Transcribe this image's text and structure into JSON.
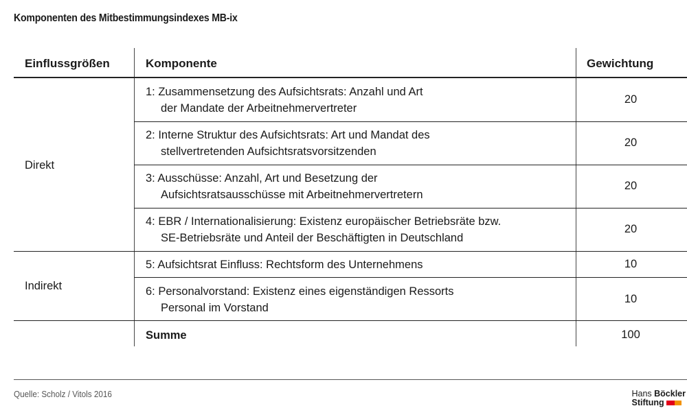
{
  "title": "Komponenten des Mitbestimmungsindexes MB-ix",
  "headers": {
    "group": "Einflussgrößen",
    "component": "Komponente",
    "weight": "Gewichtung"
  },
  "groups": [
    {
      "label": "Direkt"
    },
    {
      "label": "Indirekt"
    }
  ],
  "rows": [
    {
      "line1": "1: Zusammensetzung des Aufsichtsrats: Anzahl und Art",
      "line2": "der Mandate der Arbeitnehmervertreter",
      "weight": "20"
    },
    {
      "line1": "2: Interne Struktur des Aufsichtsrats: Art und Mandat des",
      "line2": "stellvertretenden Aufsichtsratsvorsitzenden",
      "weight": "20"
    },
    {
      "line1": "3: Ausschüsse: Anzahl, Art und Besetzung der",
      "line2": "Aufsichtsratsausschüsse mit Arbeitnehmervertretern",
      "weight": "20"
    },
    {
      "line1": "4: EBR / Internationalisierung: Existenz europäischer Betriebsräte bzw.",
      "line2": "SE-Betriebsräte und Anteil der Beschäftigten in Deutschland",
      "weight": "20"
    },
    {
      "line1": "5: Aufsichtsrat Einfluss: Rechtsform des Unternehmens",
      "line2": "",
      "weight": "10"
    },
    {
      "line1": "6: Personalvorstand: Existenz eines eigenständigen Ressorts",
      "line2": "Personal im Vorstand",
      "weight": "10"
    }
  ],
  "sum": {
    "label": "Summe",
    "weight": "100"
  },
  "source": "Quelle: Scholz / Vitols 2016",
  "logo": {
    "line1a": "Hans ",
    "line1b": "Böckler",
    "line2": "Stiftung",
    "colors": [
      "#e2001a",
      "#f39200"
    ]
  }
}
